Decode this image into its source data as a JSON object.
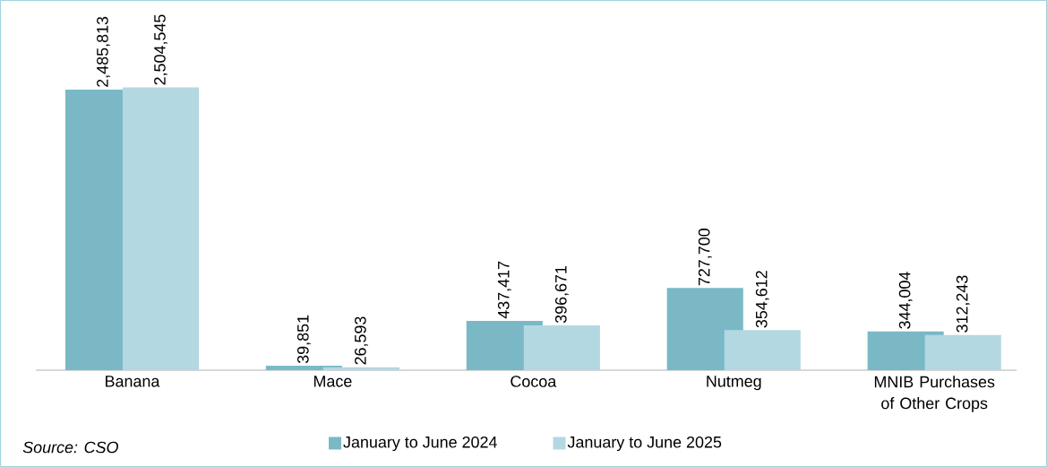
{
  "chart_data": {
    "type": "bar",
    "categories": [
      "Banana",
      "Mace",
      "Cocoa",
      "Nutmeg",
      "MNIB Purchases of Other Crops"
    ],
    "series": [
      {
        "name": "January to June 2024",
        "color": "#7ab8c6",
        "values": [
          2485813,
          39851,
          437417,
          727700,
          344004
        ],
        "value_labels": [
          "2,485,813",
          "39,851",
          "437,417",
          "727,700",
          "344,004"
        ]
      },
      {
        "name": "January to June 2025",
        "color": "#b3d8e2",
        "values": [
          2504545,
          26593,
          396671,
          354612,
          312243
        ],
        "value_labels": [
          "2,504,545",
          "26,593",
          "396,671",
          "354,612",
          "312,243"
        ]
      }
    ],
    "legend": "bottom",
    "annotations": [
      "*Source: CSO*"
    ]
  }
}
